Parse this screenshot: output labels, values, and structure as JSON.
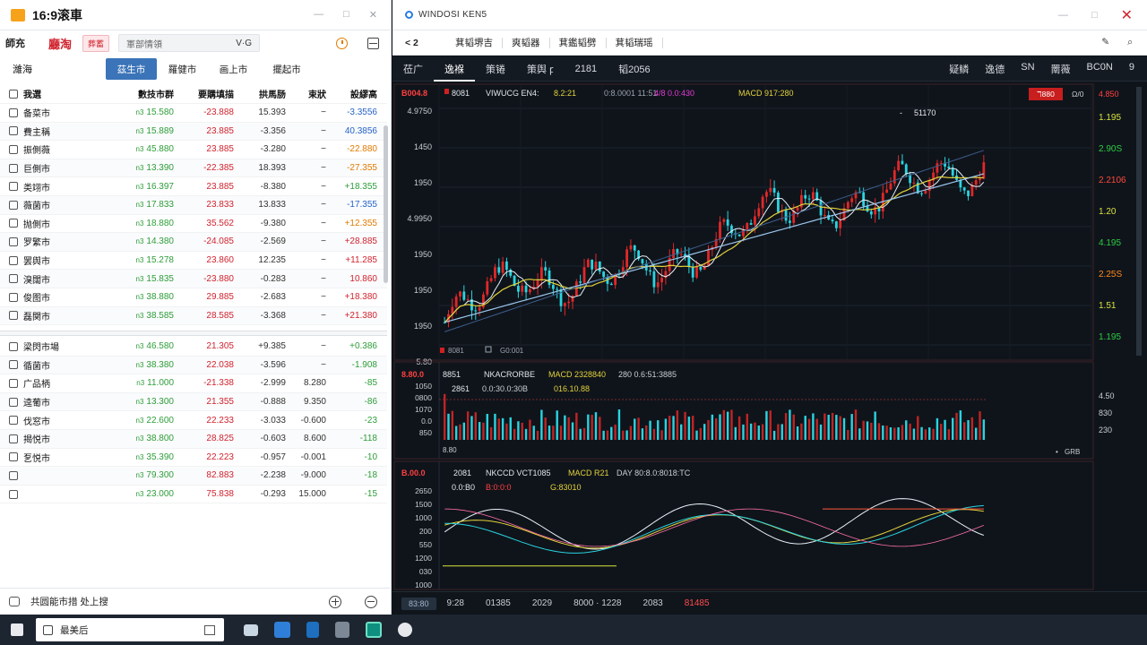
{
  "left_window": {
    "title": "16:9滚車",
    "toolbar": {
      "label1": "師充",
      "label2": "廳淘",
      "badge": "葬蓄",
      "search_text": "軍部情領",
      "search_suffix": "V·G"
    },
    "tabs_side": "濰海",
    "tabs": [
      "茲生市",
      "羅健市",
      "画上市",
      "擺起市"
    ],
    "columns": [
      "我選",
      "數技市群",
      "要購填描",
      "拱馬肠",
      "束狀",
      "設繆高"
    ],
    "rows_top": [
      {
        "name": "备菜市",
        "c1": "15.580",
        "c2": "-23.888",
        "c3": "15.393",
        "c4": "−",
        "c5": "-3.3556",
        "c5c": "b"
      },
      {
        "name": "費主稱",
        "c1": "15.889",
        "c2": "23.885",
        "c3": "-3.356",
        "c4": "−",
        "c5": "40.3856",
        "c5c": "b"
      },
      {
        "name": "振側薇",
        "c1": "45.880",
        "c2": "23.885",
        "c3": "-3.280",
        "c4": "−",
        "c5": "-22.880",
        "c5c": "o"
      },
      {
        "name": "巨側市",
        "c1": "13.390",
        "c2": "-22.385",
        "c3": "18.393",
        "c4": "−",
        "c5": "-27.355",
        "c5c": "o"
      },
      {
        "name": "类翊市",
        "c1": "16.397",
        "c2": "23.885",
        "c3": "-8.380",
        "c4": "−",
        "c5": "+18.355",
        "c5c": "g"
      },
      {
        "name": "薇菌市",
        "c1": "17.833",
        "c2": "23.833",
        "c3": "13.833",
        "c4": "−",
        "c5": "-17.355",
        "c5c": "b"
      },
      {
        "name": "抛側市",
        "c1": "18.880",
        "c2": "35.562",
        "c3": "-9.380",
        "c4": "−",
        "c5": "+12.355",
        "c5c": "o"
      },
      {
        "name": "罗繁市",
        "c1": "14.380",
        "c2": "-24.085",
        "c3": "-2.569",
        "c4": "−",
        "c5": "+28.885",
        "c5c": "r"
      },
      {
        "name": "罢舆市",
        "c1": "15.278",
        "c2": "23.860",
        "c3": "12.235",
        "c4": "−",
        "c5": "+11.285",
        "c5c": "r"
      },
      {
        "name": "溴闊市",
        "c1": "15.835",
        "c2": "-23.880",
        "c3": "-0.283",
        "c4": "−",
        "c5": "10.860",
        "c5c": "r"
      },
      {
        "name": "俊图市",
        "c1": "38.880",
        "c2": "29.885",
        "c3": "-2.683",
        "c4": "−",
        "c5": "+18.380",
        "c5c": "r"
      },
      {
        "name": "磊関市",
        "c1": "38.585",
        "c2": "28.585",
        "c3": "-3.368",
        "c4": "−",
        "c5": "+21.380",
        "c5c": "r"
      }
    ],
    "rows_bottom": [
      {
        "name": "梁閃市場",
        "c1": "46.580",
        "c2": "21.305",
        "c3": "+9.385",
        "c4": "−",
        "c5": "+0.386",
        "c5c": "g"
      },
      {
        "name": "循菌市",
        "c1": "38.380",
        "c2": "22.038",
        "c3": "-3.596",
        "c4": "−",
        "c5": "-1.908",
        "c5c": "g"
      },
      {
        "name": "广品柄",
        "c1": "11.000",
        "c2": "-21.338",
        "c3": "-2.999",
        "c4": "8.280",
        "c5": "-85",
        "c5c": "g"
      },
      {
        "name": "逵葡市",
        "c1": "13.300",
        "c2": "21.355",
        "c3": "-0.888",
        "c4": "9.350",
        "c5": "-86",
        "c5c": "g"
      },
      {
        "name": "伐窓市",
        "c1": "22.600",
        "c2": "22.233",
        "c3": "-3.033",
        "c4": "-0.600",
        "c5": "-23",
        "c5c": "g"
      },
      {
        "name": "揭悦市",
        "c1": "38.800",
        "c2": "28.825",
        "c3": "-0.603",
        "c4": "8.600",
        "c5": "-118",
        "c5c": "g"
      },
      {
        "name": "乭悦市",
        "c1": "35.390",
        "c2": "22.223",
        "c3": "-0.957",
        "c4": "-0.001",
        "c5": "-10",
        "c5c": "g"
      },
      {
        "name": "",
        "c1": "79.300",
        "c2": "82.883",
        "c3": "-2.238",
        "c4": "-9.000",
        "c5": "-18",
        "c5c": "g"
      },
      {
        "name": "",
        "c1": "23.000",
        "c2": "75.838",
        "c3": "-0.293",
        "c4": "15.000",
        "c5": "-15",
        "c5c": "g"
      }
    ],
    "footer_text": "共圆能市措 处上搜"
  },
  "right_window": {
    "title": "WINDOSI KEN5",
    "toolbar": {
      "nav": "<  2",
      "items": [
        "萁韬堺吉",
        "爽韬器",
        "萁鑑韬劈",
        "萁韬瑞瑶"
      ]
    },
    "tabs": [
      "莅广",
      "逸褓",
      "策锩",
      "策舆 ꝼ",
      "2181",
      "韬2056"
    ],
    "tabs_right": [
      "疑鳞",
      "逸德",
      "SN",
      "罱薇",
      "BC0N",
      "9"
    ],
    "main_legend": {
      "l1": "8081",
      "l2": "VIWUCG EN4:",
      "l3": "8.2:21",
      "l4": "0:8.0001 11:51",
      "l5": "4/8 0.0:430",
      "l6": "MACD 917:280",
      "badge": "ℸ880",
      "right": "Ω/0"
    },
    "main_price_labels": [
      "4.9750",
      "1450",
      "1950",
      "4.9950",
      "1950",
      "1950",
      "1950",
      "5.80"
    ],
    "main_top_left": "B004.8",
    "main_high_label": "51170",
    "main_bottom_label": "G0:001",
    "right_ladder": [
      {
        "v": "1.195",
        "c": "#d7e33a"
      },
      {
        "v": "2.90S",
        "c": "#2ecc40"
      },
      {
        "v": "2.2106",
        "c": "#ff4a3a"
      },
      {
        "v": "1.20",
        "c": "#d7e33a"
      },
      {
        "v": "4.195",
        "c": "#2ecc40"
      },
      {
        "v": "2.25S",
        "c": "#ff8a1a"
      },
      {
        "v": "1.51",
        "c": "#d7e33a"
      },
      {
        "v": "1.195",
        "c": "#2ecc40"
      }
    ],
    "right_top": "4.850",
    "vol_legend": {
      "top_left": "8.80.0",
      "l1": "8851",
      "l2": "NKACRORBE",
      "l3": "MACD 2328840",
      "l4": "280 0.6:51:3885",
      "l5": "2861",
      "l6": "0.0:30.0:30B",
      "l7": "016.10.88"
    },
    "vol_axis": [
      "1050",
      "0800",
      "1070",
      "0.0",
      "850"
    ],
    "vol_right": [
      "4.50",
      "830",
      "230"
    ],
    "vol_footer_left": "8.80",
    "vol_footer_right": "GRB",
    "macd_legend": {
      "top_left": "B.00.0",
      "l1": "2081",
      "l2": "NKCCD VCT1085",
      "l3": "MACD R21",
      "l4": "DAY 80:8.0:8018:TC",
      "l5": "0.0:B0",
      "l6": "B:0:0:0",
      "l7": "G:83010"
    },
    "macd_axis": [
      "2650",
      "1500",
      "1000",
      "200",
      "550",
      "1200",
      "030",
      "1000"
    ],
    "footer": [
      "83:80",
      "9:28",
      "01385",
      "2029",
      "8000 · 1228",
      "2083",
      "81485"
    ],
    "colors": {
      "up": "#e02828",
      "down": "#2ad4e0",
      "ma_yellow": "#e3d23a",
      "ma_white": "#e8f0f8",
      "ma_blue": "#9cc7ee"
    }
  },
  "chart_data": [
    {
      "type": "candlestick",
      "title": "",
      "note": "price series approximated by trend; rising from ~bottom to top across the session",
      "ylim": [
        0,
        100
      ],
      "x_count": 140,
      "trend_points": [
        [
          0,
          8
        ],
        [
          20,
          28
        ],
        [
          35,
          26
        ],
        [
          55,
          30
        ],
        [
          75,
          48
        ],
        [
          95,
          58
        ],
        [
          115,
          62
        ],
        [
          135,
          72
        ],
        [
          139,
          74
        ]
      ]
    },
    {
      "type": "bar",
      "title": "volume",
      "values_description": "dense alternating red/cyan volume bars"
    },
    {
      "type": "line",
      "title": "MACD"
    }
  ],
  "taskbar": {
    "search_text": "最美后",
    "apps": [
      "chat",
      "store",
      "doc",
      "settings",
      "stocks",
      "shield"
    ]
  }
}
